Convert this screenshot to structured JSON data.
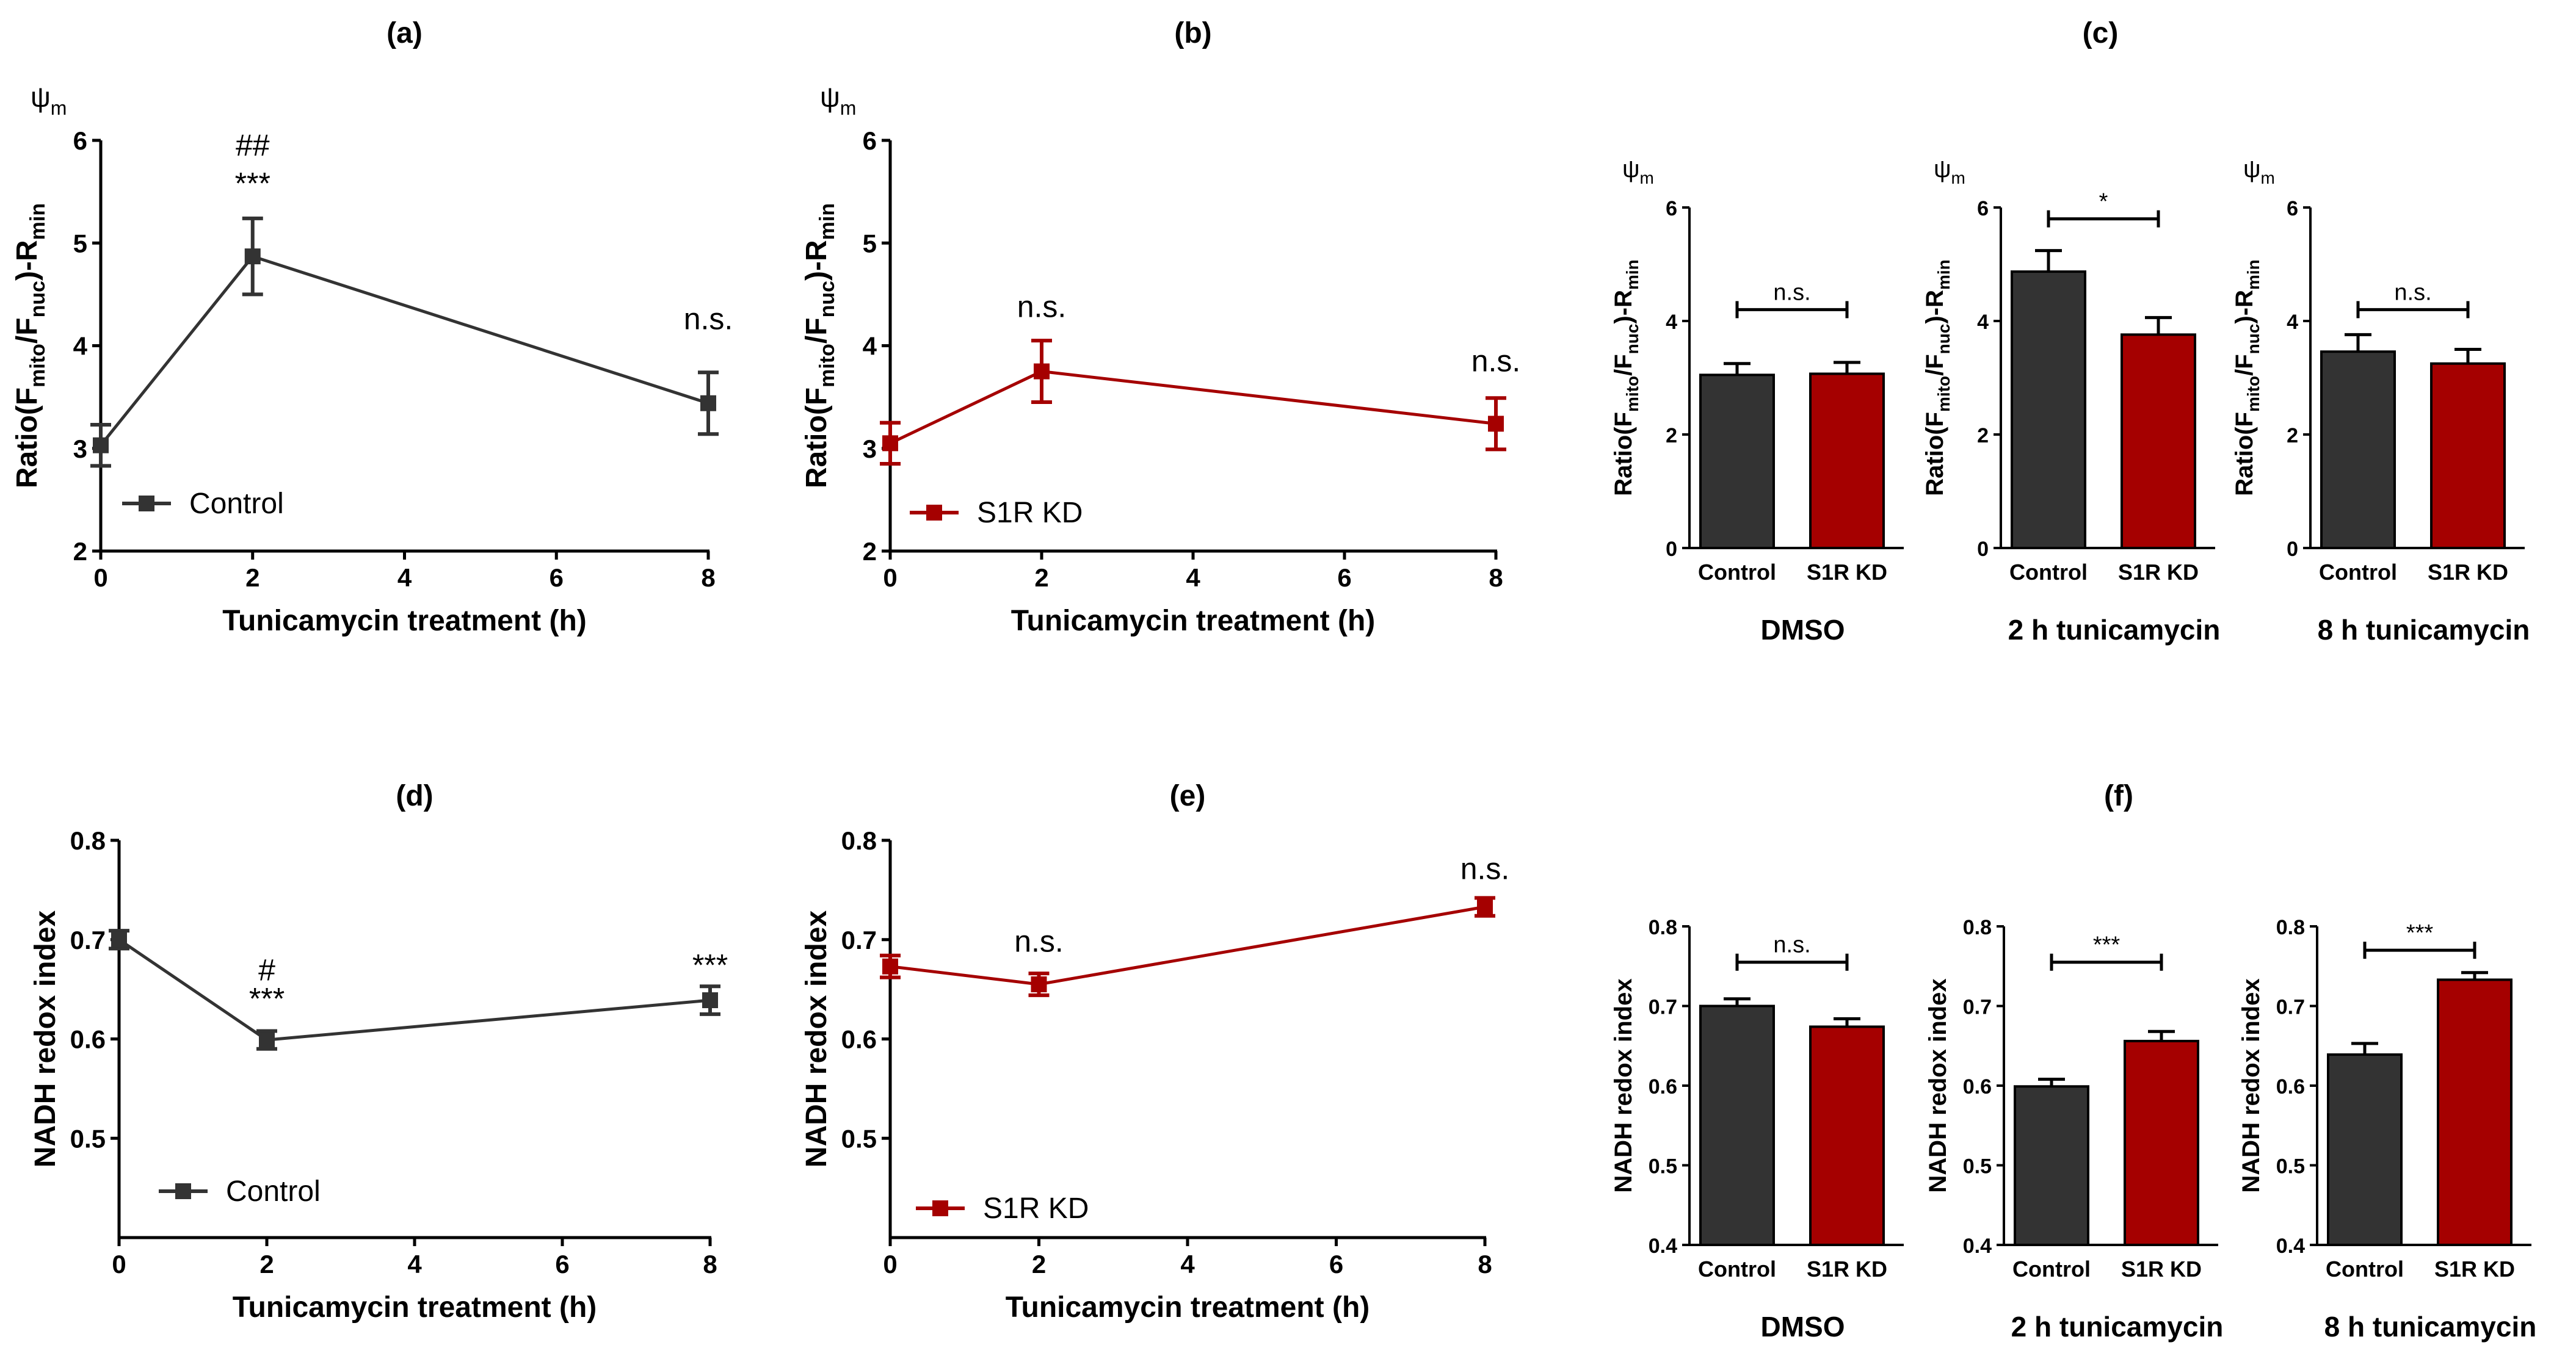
{
  "chart_data": [
    {
      "id": "a",
      "type": "line",
      "panel_label": "(a)",
      "psi_label": "ψ",
      "psi_sub": "m",
      "ylabel_parts": [
        "Ratio(F",
        "mito",
        "/F",
        "nuc",
        ")-R",
        "min"
      ],
      "xlabel": "Tunicamycin treatment (h)",
      "xlim": [
        0,
        8
      ],
      "ylim": [
        2,
        6
      ],
      "xticks": [
        "0",
        "2",
        "4",
        "6",
        "8"
      ],
      "yticks": [
        "2",
        "3",
        "4",
        "5",
        "6"
      ],
      "series": [
        {
          "name": "Control",
          "color": "#333333",
          "x": [
            0,
            2,
            8
          ],
          "y": [
            3.03,
            4.87,
            3.44
          ],
          "err": [
            0.2,
            0.37,
            0.3
          ]
        }
      ],
      "annotations": [
        {
          "x": 2,
          "y": 5.48,
          "text": "***"
        },
        {
          "x": 2,
          "y": 5.85,
          "text": "##"
        },
        {
          "x": 8,
          "y": 4.16,
          "text": "n.s."
        }
      ]
    },
    {
      "id": "b",
      "type": "line",
      "panel_label": "(b)",
      "psi_label": "ψ",
      "psi_sub": "m",
      "ylabel_parts": [
        "Ratio(F",
        "mito",
        "/F",
        "nuc",
        ")-R",
        "min"
      ],
      "xlabel": "Tunicamycin treatment (h)",
      "xlim": [
        0,
        8
      ],
      "ylim": [
        2,
        6
      ],
      "xticks": [
        "0",
        "2",
        "4",
        "6",
        "8"
      ],
      "yticks": [
        "2",
        "3",
        "4",
        "5",
        "6"
      ],
      "series": [
        {
          "name": "S1R KD",
          "color": "#a50000",
          "x": [
            0,
            2,
            8
          ],
          "y": [
            3.05,
            3.75,
            3.24
          ],
          "err": [
            0.2,
            0.3,
            0.25
          ]
        }
      ],
      "annotations": [
        {
          "x": 2,
          "y": 4.28,
          "text": "n.s."
        },
        {
          "x": 8,
          "y": 3.75,
          "text": "n.s."
        }
      ]
    },
    {
      "id": "c",
      "type": "bar",
      "panel_label": "(c)",
      "subplots": [
        {
          "id": "c1",
          "title": "DMSO",
          "psi_label": "ψ",
          "psi_sub": "m",
          "ylabel_parts": [
            "Ratio(F",
            "mito",
            "/F",
            "nuc",
            ")-R",
            "min"
          ],
          "categories": [
            "Control",
            "S1R KD"
          ],
          "values": [
            3.05,
            3.07
          ],
          "err": [
            0.2,
            0.2
          ],
          "ylim": [
            0,
            6
          ],
          "yticks": [
            "0",
            "2",
            "4",
            "6"
          ],
          "sig": "n.s.",
          "sig_y": 4.2
        },
        {
          "id": "c2",
          "title": "2 h tunicamycin",
          "psi_label": "ψ",
          "psi_sub": "m",
          "ylabel_parts": [
            "Ratio(F",
            "mito",
            "/F",
            "nuc",
            ")-R",
            "min"
          ],
          "categories": [
            "Control",
            "S1R KD"
          ],
          "values": [
            4.87,
            3.76
          ],
          "err": [
            0.37,
            0.3
          ],
          "ylim": [
            0,
            6
          ],
          "yticks": [
            "0",
            "2",
            "4",
            "6"
          ],
          "sig": "*",
          "sig_y": 5.8
        },
        {
          "id": "c3",
          "title": "8 h tunicamycin",
          "psi_label": "ψ",
          "psi_sub": "m",
          "ylabel_parts": [
            "Ratio(F",
            "mito",
            "/F",
            "nuc",
            ")-R",
            "min"
          ],
          "categories": [
            "Control",
            "S1R KD"
          ],
          "values": [
            3.46,
            3.25
          ],
          "err": [
            0.3,
            0.25
          ],
          "ylim": [
            0,
            6
          ],
          "yticks": [
            "0",
            "2",
            "4",
            "6"
          ],
          "sig": "n.s.",
          "sig_y": 4.2
        }
      ]
    },
    {
      "id": "d",
      "type": "line",
      "panel_label": "(d)",
      "ylabel": "NADH redox index",
      "xlabel": "Tunicamycin treatment (h)",
      "xlim": [
        0,
        8
      ],
      "ylim": [
        0.4,
        0.8
      ],
      "xticks": [
        "0",
        "2",
        "4",
        "6",
        "8"
      ],
      "yticks": [
        "0.5",
        "0.6",
        "0.7",
        "0.8"
      ],
      "series": [
        {
          "name": "Control",
          "color": "#333333",
          "x": [
            0,
            2,
            8
          ],
          "y": [
            0.7,
            0.599,
            0.639
          ],
          "err": [
            0.009,
            0.009,
            0.014
          ]
        }
      ],
      "annotations": [
        {
          "x": 2,
          "y": 0.63,
          "text": "***"
        },
        {
          "x": 2,
          "y": 0.659,
          "text": "#"
        },
        {
          "x": 8,
          "y": 0.664,
          "text": "***"
        }
      ]
    },
    {
      "id": "e",
      "type": "line",
      "panel_label": "(e)",
      "ylabel": "NADH redox index",
      "xlabel": "Tunicamycin treatment (h)",
      "xlim": [
        0,
        8
      ],
      "ylim": [
        0.4,
        0.8
      ],
      "xticks": [
        "0",
        "2",
        "4",
        "6",
        "8"
      ],
      "yticks": [
        "0.5",
        "0.6",
        "0.7",
        "0.8"
      ],
      "series": [
        {
          "name": "S1R KD",
          "color": "#a50000",
          "x": [
            0,
            2,
            8
          ],
          "y": [
            0.673,
            0.655,
            0.733
          ],
          "err": [
            0.011,
            0.011,
            0.009
          ]
        }
      ],
      "annotations": [
        {
          "x": 2,
          "y": 0.688,
          "text": "n.s."
        },
        {
          "x": 8,
          "y": 0.761,
          "text": "n.s."
        }
      ]
    },
    {
      "id": "f",
      "type": "bar",
      "panel_label": "(f)",
      "subplots": [
        {
          "id": "f1",
          "title": "DMSO",
          "ylabel": "NADH redox index",
          "categories": [
            "Control",
            "S1R KD"
          ],
          "values": [
            0.7,
            0.674
          ],
          "err": [
            0.009,
            0.01
          ],
          "ylim": [
            0.4,
            0.8
          ],
          "yticks": [
            "0.4",
            "0.5",
            "0.6",
            "0.7",
            "0.8"
          ],
          "sig": "n.s.",
          "sig_y": 0.755
        },
        {
          "id": "f2",
          "title": "2 h tunicamycin",
          "ylabel": "NADH redox index",
          "categories": [
            "Control",
            "S1R KD"
          ],
          "values": [
            0.599,
            0.656
          ],
          "err": [
            0.009,
            0.012
          ],
          "ylim": [
            0.4,
            0.8
          ],
          "yticks": [
            "0.4",
            "0.5",
            "0.6",
            "0.7",
            "0.8"
          ],
          "sig": "***",
          "sig_y": 0.755
        },
        {
          "id": "f3",
          "title": "8 h tunicamycin",
          "ylabel": "NADH redox index",
          "categories": [
            "Control",
            "S1R KD"
          ],
          "values": [
            0.639,
            0.733
          ],
          "err": [
            0.014,
            0.009
          ],
          "ylim": [
            0.4,
            0.8
          ],
          "yticks": [
            "0.4",
            "0.5",
            "0.6",
            "0.7",
            "0.8"
          ],
          "sig": "***",
          "sig_y": 0.77
        }
      ]
    }
  ]
}
